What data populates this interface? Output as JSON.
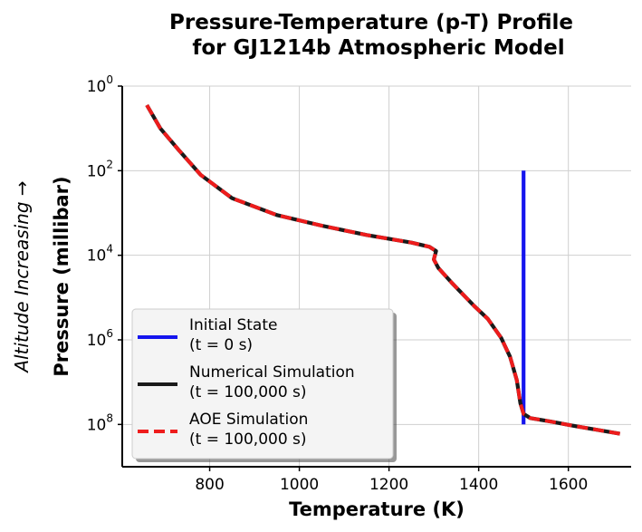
{
  "chart_data": {
    "type": "line",
    "title": [
      "Pressure-Temperature (p-T) Profile",
      "for GJ1214b Atmospheric Model"
    ],
    "xlabel": "Temperature (K)",
    "ylabel": "Pressure (millibar)",
    "side_label": "Altitude Increasing →",
    "xlim": [
      605,
      1740
    ],
    "ylim_log10": [
      9.0,
      0.0
    ],
    "yscale": "log",
    "grid": true,
    "legend_position": "lower-left",
    "x_ticks": [
      800,
      1000,
      1200,
      1400,
      1600
    ],
    "y_ticks": [
      {
        "exp": 0,
        "base": "10",
        "sup": "0"
      },
      {
        "exp": 2,
        "base": "10",
        "sup": "2"
      },
      {
        "exp": 4,
        "base": "10",
        "sup": "4"
      },
      {
        "exp": 6,
        "base": "10",
        "sup": "6"
      },
      {
        "exp": 8,
        "base": "10",
        "sup": "8"
      }
    ],
    "series": [
      {
        "name": "Initial State",
        "legend_line1": "Initial State",
        "legend_line2": "(t = 0 s)",
        "color": "#1515ee",
        "style": "solid",
        "points": [
          [
            1500,
            2.0
          ],
          [
            1500,
            8.0
          ]
        ]
      },
      {
        "name": "Numerical Simulation",
        "legend_line1": "Numerical Simulation",
        "legend_line2": "(t = 100,000 s)",
        "color": "#1a1a1a",
        "style": "solid",
        "points": [
          [
            660,
            0.45
          ],
          [
            690,
            1.0
          ],
          [
            730,
            1.5
          ],
          [
            780,
            2.1
          ],
          [
            850,
            2.65
          ],
          [
            950,
            3.05
          ],
          [
            1050,
            3.3
          ],
          [
            1150,
            3.52
          ],
          [
            1250,
            3.7
          ],
          [
            1290,
            3.8
          ],
          [
            1305,
            3.9
          ],
          [
            1300,
            4.1
          ],
          [
            1310,
            4.3
          ],
          [
            1340,
            4.65
          ],
          [
            1390,
            5.2
          ],
          [
            1420,
            5.5
          ],
          [
            1450,
            5.95
          ],
          [
            1470,
            6.4
          ],
          [
            1485,
            6.95
          ],
          [
            1493,
            7.5
          ],
          [
            1500,
            7.75
          ],
          [
            1515,
            7.85
          ],
          [
            1560,
            7.93
          ],
          [
            1610,
            8.03
          ],
          [
            1660,
            8.12
          ],
          [
            1715,
            8.22
          ]
        ]
      },
      {
        "name": "AOE Simulation",
        "legend_line1": "AOE Simulation",
        "legend_line2": "(t = 100,000 s)",
        "color": "#ee1c1c",
        "style": "dashed",
        "points": [
          [
            660,
            0.45
          ],
          [
            690,
            1.0
          ],
          [
            730,
            1.5
          ],
          [
            780,
            2.1
          ],
          [
            850,
            2.65
          ],
          [
            950,
            3.05
          ],
          [
            1050,
            3.3
          ],
          [
            1150,
            3.52
          ],
          [
            1250,
            3.7
          ],
          [
            1290,
            3.8
          ],
          [
            1305,
            3.9
          ],
          [
            1300,
            4.1
          ],
          [
            1310,
            4.3
          ],
          [
            1340,
            4.65
          ],
          [
            1390,
            5.2
          ],
          [
            1420,
            5.5
          ],
          [
            1450,
            5.95
          ],
          [
            1470,
            6.4
          ],
          [
            1485,
            6.95
          ],
          [
            1493,
            7.5
          ],
          [
            1500,
            7.75
          ],
          [
            1515,
            7.85
          ],
          [
            1560,
            7.93
          ],
          [
            1610,
            8.03
          ],
          [
            1660,
            8.12
          ],
          [
            1715,
            8.22
          ]
        ]
      }
    ]
  }
}
